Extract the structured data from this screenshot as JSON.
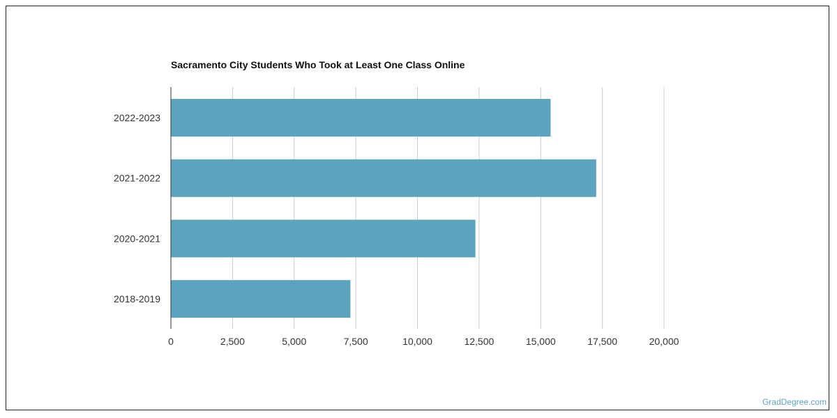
{
  "chart_data": {
    "type": "bar",
    "orientation": "horizontal",
    "title": "Sacramento City Students Who Took at Least One Class Online",
    "categories": [
      "2022-2023",
      "2021-2022",
      "2020-2021",
      "2018-2019"
    ],
    "values": [
      15400,
      17250,
      12350,
      7280
    ],
    "xlim": [
      0,
      20000
    ],
    "xticks": [
      0,
      2500,
      5000,
      7500,
      10000,
      12500,
      15000,
      17500,
      20000
    ],
    "xtick_labels": [
      "0",
      "2,500",
      "5,000",
      "7,500",
      "10,000",
      "12,500",
      "15,000",
      "17,500",
      "20,000"
    ],
    "grid": true,
    "legend": "none",
    "bar_color": "#5ba3be",
    "grid_color": "#cccccc"
  },
  "footer": {
    "credit": "GradDegree.com"
  }
}
